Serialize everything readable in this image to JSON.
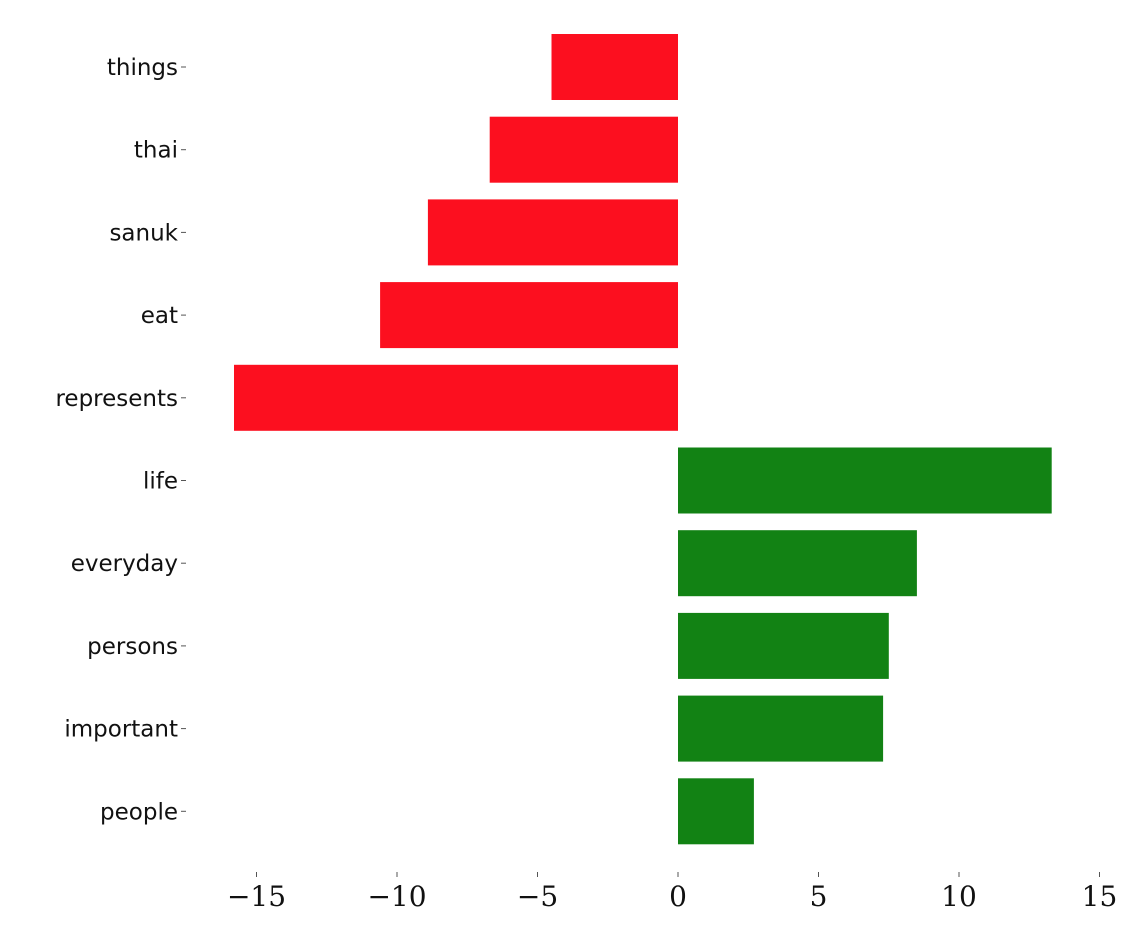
{
  "chart_data": {
    "type": "bar",
    "orientation": "horizontal",
    "categories": [
      "things",
      "thai",
      "sanuk",
      "eat",
      "represents",
      "life",
      "everyday",
      "persons",
      "important",
      "people"
    ],
    "values": [
      -4.5,
      -6.7,
      -8.9,
      -10.6,
      -15.8,
      13.3,
      8.5,
      7.5,
      7.3,
      2.7
    ],
    "x_ticks": [
      -15,
      -10,
      -5,
      0,
      5,
      10,
      15
    ],
    "x_tick_labels": [
      "−15",
      "−10",
      "−5",
      "0",
      "5",
      "10",
      "15"
    ],
    "xlim": [
      -16.3,
      15.5
    ],
    "title": "",
    "xlabel": "",
    "ylabel": "",
    "grid": false,
    "legend": "none",
    "colors": {
      "negative": "#fc0f1f",
      "positive": "#128214"
    }
  }
}
